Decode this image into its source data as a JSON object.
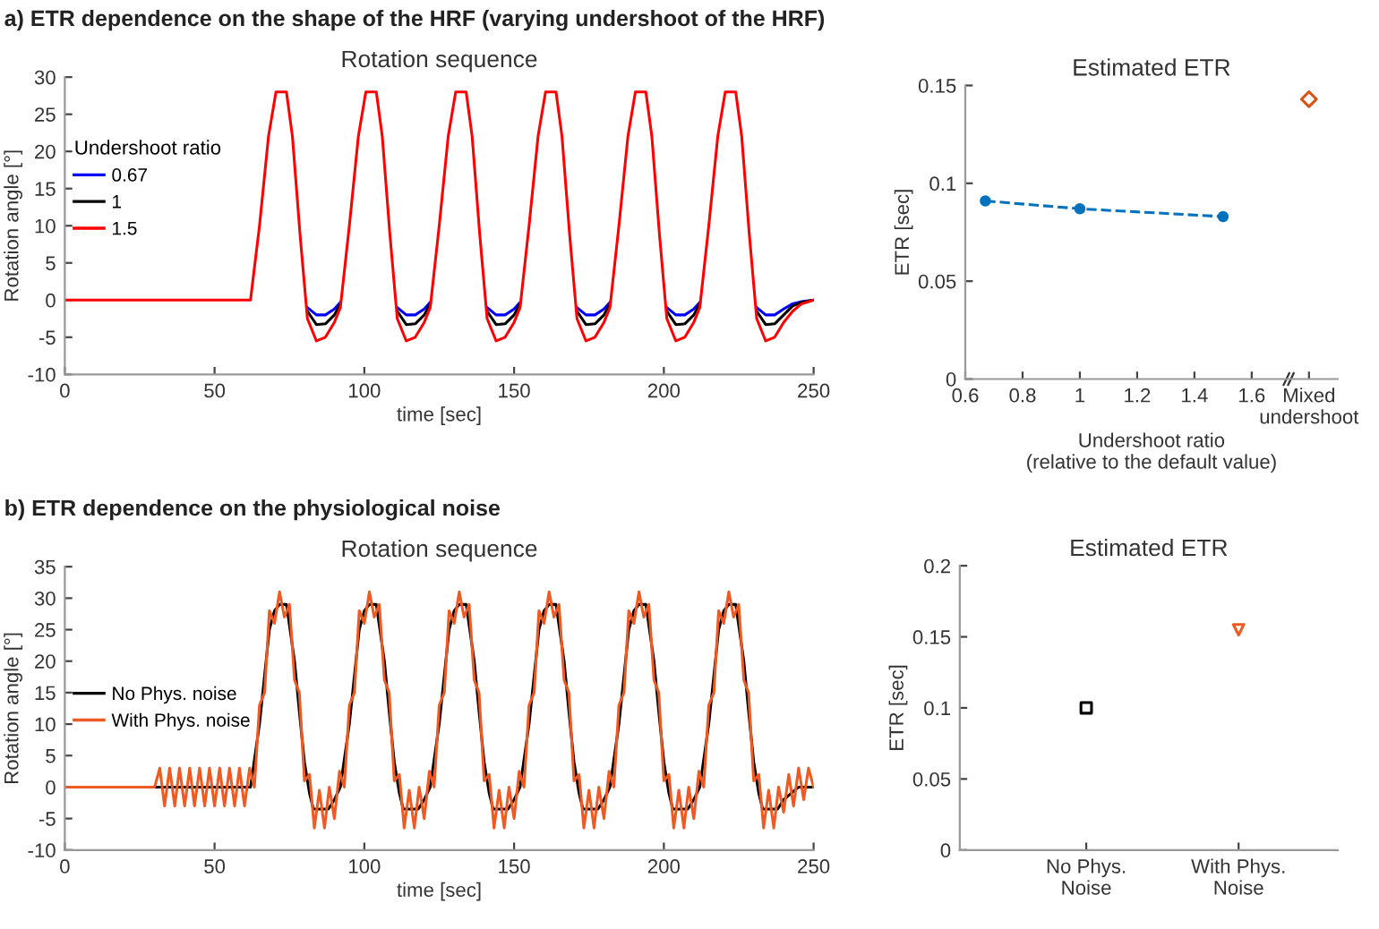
{
  "chart_data": [
    {
      "type": "line",
      "title": "Rotation sequence",
      "xlabel": "time [sec]",
      "ylabel": "Rotation angle [°]",
      "legend_title": "Undershoot ratio",
      "legend": "top left",
      "annotations": [
        "a) ETR dependence on the shape of the HRF (varying undershoot of the HRF)"
      ],
      "xlim": [
        0,
        250
      ],
      "xticks": [
        0,
        50,
        100,
        150,
        200,
        250
      ],
      "ylim": [
        -10,
        30
      ],
      "yticks": [
        -10,
        -5,
        0,
        5,
        10,
        15,
        20,
        25,
        30
      ],
      "x": [
        0,
        62,
        65,
        68,
        70.5,
        74,
        76,
        78.5,
        81,
        84,
        87,
        90,
        92,
        95,
        98,
        100.5,
        104,
        106,
        108.5,
        111,
        114,
        117,
        120,
        122,
        125,
        128,
        130.5,
        134,
        136,
        138.5,
        141,
        144,
        147,
        150,
        152,
        155,
        158,
        160.5,
        164,
        166,
        168.5,
        171,
        174,
        177,
        180,
        182,
        185,
        188,
        190.5,
        194,
        196,
        198.5,
        201,
        204,
        207,
        210,
        212,
        215,
        218,
        220.5,
        224,
        226,
        228.5,
        231,
        234,
        237,
        240,
        243,
        246,
        250
      ],
      "series": [
        {
          "name": "0.67",
          "color": "#0000ff",
          "values": [
            null,
            null,
            null,
            null,
            null,
            null,
            null,
            null,
            -1,
            -2,
            -2,
            -1.2,
            -0.3,
            null,
            null,
            null,
            null,
            null,
            null,
            -1,
            -2,
            -2,
            -1.2,
            -0.3,
            null,
            null,
            null,
            null,
            null,
            null,
            -1,
            -2,
            -2,
            -1.2,
            -0.3,
            null,
            null,
            null,
            null,
            null,
            null,
            -1,
            -2,
            -2,
            -1.2,
            -0.3,
            null,
            null,
            null,
            null,
            null,
            null,
            -1,
            -2,
            -2,
            -1.2,
            -0.3,
            null,
            null,
            null,
            null,
            null,
            null,
            -1,
            -2,
            -2,
            -1.2,
            -0.5,
            -0.2,
            0
          ]
        },
        {
          "name": "1",
          "color": "#000000",
          "values": [
            null,
            null,
            null,
            null,
            null,
            null,
            null,
            null,
            -1.5,
            -3.3,
            -3.2,
            -2,
            -0.5,
            null,
            null,
            null,
            null,
            null,
            null,
            -1.5,
            -3.3,
            -3.2,
            -2,
            -0.5,
            null,
            null,
            null,
            null,
            null,
            null,
            -1.5,
            -3.3,
            -3.2,
            -2,
            -0.5,
            null,
            null,
            null,
            null,
            null,
            null,
            -1.5,
            -3.3,
            -3.2,
            -2,
            -0.5,
            null,
            null,
            null,
            null,
            null,
            null,
            -1.5,
            -3.3,
            -3.2,
            -2,
            -0.5,
            null,
            null,
            null,
            null,
            null,
            null,
            -1.5,
            -3.3,
            -3.2,
            -2,
            -0.8,
            -0.3,
            0
          ]
        },
        {
          "name": "1.5",
          "color": "#ff0000",
          "values": [
            0,
            0,
            10,
            22,
            28,
            28,
            22,
            9,
            -2.5,
            -5.5,
            -5,
            -3,
            -1,
            10,
            22,
            28,
            28,
            22,
            9,
            -2.5,
            -5.5,
            -5,
            -3,
            -1,
            10,
            22,
            28,
            28,
            22,
            9,
            -2.5,
            -5.5,
            -5,
            -3,
            -1,
            10,
            22,
            28,
            28,
            22,
            9,
            -2.5,
            -5.5,
            -5,
            -3,
            -1,
            10,
            22,
            28,
            28,
            22,
            9,
            -2.5,
            -5.5,
            -5,
            -3,
            -1,
            10,
            22,
            28,
            28,
            22,
            9,
            -2.5,
            -5.5,
            -5,
            -3,
            -1.5,
            -0.5,
            0
          ]
        }
      ]
    },
    {
      "type": "line",
      "title": "Estimated ETR",
      "xlabel": "Undershoot ratio\n(relative to the default value)",
      "ylabel": "ETR [sec]",
      "xlim": [
        0.6,
        1.9
      ],
      "xticks": [
        0.6,
        0.8,
        1,
        1.2,
        1.4,
        1.6,
        {
          "value": 1.8,
          "label": "Mixed\nundershoot"
        }
      ],
      "ylim": [
        0,
        0.15
      ],
      "yticks": [
        0,
        0.05,
        0.1,
        0.15
      ],
      "series": [
        {
          "color": "#0072bd",
          "x": [
            0.67,
            1,
            1.5
          ],
          "values": [
            0.091,
            0.087,
            0.083
          ],
          "marker": "circle",
          "line_style": "dashed"
        },
        {
          "type": "scatter",
          "color": "#d95319",
          "x": [
            1.8
          ],
          "values": [
            0.143
          ],
          "marker": "diamond"
        }
      ]
    },
    {
      "type": "line",
      "title": "Rotation sequence",
      "xlabel": "time [sec]",
      "ylabel": "Rotation angle [°]",
      "legend": "left",
      "annotations": [
        "b) ETR dependence on the physiological noise"
      ],
      "xlim": [
        0,
        250
      ],
      "xticks": [
        0,
        50,
        100,
        150,
        200,
        250
      ],
      "ylim": [
        -10,
        35
      ],
      "yticks": [
        -10,
        -5,
        0,
        5,
        10,
        15,
        20,
        25,
        30,
        35
      ],
      "series": [
        {
          "name": "No Phys. noise",
          "color": "#000000",
          "x": [
            0,
            60,
            62,
            65,
            68.3,
            70,
            71.7,
            74,
            76.7,
            78.3,
            80,
            81.7,
            83,
            88,
            90,
            92,
            95,
            98.3,
            100,
            101.7,
            104,
            106.7,
            108.3,
            110,
            111.7,
            113,
            118,
            120,
            122,
            125,
            128.3,
            130,
            131.7,
            134,
            136.7,
            138.3,
            140,
            141.7,
            143,
            148,
            150,
            152,
            155,
            158.3,
            160,
            161.7,
            164,
            166.7,
            168.3,
            170,
            171.7,
            173,
            178,
            180,
            182,
            185,
            188.3,
            190,
            191.7,
            194,
            196.7,
            198.3,
            200,
            201.7,
            203,
            208,
            210,
            212,
            215,
            218.3,
            220,
            221.7,
            224,
            226.7,
            228.3,
            230,
            231.7,
            233,
            238,
            240,
            245,
            250
          ],
          "values": [
            0,
            0,
            0,
            10,
            25,
            28,
            29,
            29,
            20,
            12,
            4,
            -1,
            -3.5,
            -3.5,
            -2,
            0,
            10,
            25,
            28,
            29,
            29,
            20,
            12,
            4,
            -1,
            -3.5,
            -3.5,
            -2,
            0,
            10,
            25,
            28,
            29,
            29,
            20,
            12,
            4,
            -1,
            -3.5,
            -3.5,
            -2,
            0,
            10,
            25,
            28,
            29,
            29,
            20,
            12,
            4,
            -1,
            -3.5,
            -3.5,
            -2,
            0,
            10,
            25,
            28,
            29,
            29,
            20,
            12,
            4,
            -1,
            -3.5,
            -3.5,
            -2,
            0,
            10,
            25,
            28,
            29,
            29,
            20,
            12,
            4,
            -1,
            -3.5,
            -3.5,
            -2,
            0,
            0
          ]
        },
        {
          "name": "With Phys. noise",
          "color": "#ee5a24",
          "x": [
            0,
            30,
            31.7,
            33.3,
            35,
            36.7,
            38.3,
            40,
            41.7,
            43.3,
            45,
            46.7,
            48.3,
            50,
            51.7,
            53.3,
            55,
            56.7,
            58.3,
            60,
            61.7,
            63.3,
            65,
            66.7,
            68.3,
            70,
            71.7,
            73.3,
            75,
            76.7,
            78.3,
            80,
            81.7,
            83.3,
            85,
            86.7,
            88.3,
            90,
            91.7,
            93.3,
            95,
            96.7,
            98.3,
            100,
            101.7,
            103.3,
            105,
            106.7,
            108.3,
            110,
            111.7,
            113.3,
            115,
            116.7,
            118.3,
            120,
            121.7,
            123.3,
            125,
            126.7,
            128.3,
            130,
            131.7,
            133.3,
            135,
            136.7,
            138.3,
            140,
            141.7,
            143.3,
            145,
            146.7,
            148.3,
            150,
            151.7,
            153.3,
            155,
            156.7,
            158.3,
            160,
            161.7,
            163.3,
            165,
            166.7,
            168.3,
            170,
            171.7,
            173.3,
            175,
            176.7,
            178.3,
            180,
            181.7,
            183.3,
            185,
            186.7,
            188.3,
            190,
            191.7,
            193.3,
            195,
            196.7,
            198.3,
            200,
            201.7,
            203.3,
            205,
            206.7,
            208.3,
            210,
            211.7,
            213.3,
            215,
            216.7,
            218.3,
            220,
            221.7,
            223.3,
            225,
            226.7,
            228.3,
            230,
            231.7,
            233.3,
            235,
            236.7,
            238.3,
            240,
            241.7,
            243.3,
            245,
            246.7,
            248.3,
            250
          ],
          "values": [
            0,
            0,
            3,
            -3,
            3,
            -3,
            3,
            -3,
            3,
            -3,
            3,
            -3,
            3,
            -3,
            3,
            -3,
            3,
            -3,
            3,
            -3,
            3,
            0,
            13,
            15,
            28,
            26,
            31,
            27,
            29,
            17,
            15,
            1,
            2,
            -6.5,
            -0.5,
            -6.5,
            0,
            -5,
            2.5,
            0,
            13,
            15,
            28,
            26,
            31,
            27,
            29,
            17,
            15,
            1,
            2,
            -6.5,
            -0.5,
            -6.5,
            0,
            -5,
            2.5,
            0,
            13,
            15,
            28,
            26,
            31,
            27,
            29,
            17,
            15,
            1,
            2,
            -6.5,
            -0.5,
            -6.5,
            0,
            -5,
            2.5,
            0,
            13,
            15,
            28,
            26,
            31,
            27,
            29,
            17,
            15,
            1,
            2,
            -6.5,
            -0.5,
            -6.5,
            0,
            -5,
            2.5,
            0,
            13,
            15,
            28,
            26,
            31,
            27,
            29,
            17,
            15,
            1,
            2,
            -6.5,
            -0.5,
            -6.5,
            0,
            -5,
            2.5,
            0,
            13,
            15,
            28,
            26,
            31,
            27,
            29,
            17,
            15,
            1,
            2,
            -6.5,
            -0.5,
            -6.5,
            0,
            -4,
            2,
            -3,
            3,
            -2,
            3,
            0
          ]
        }
      ]
    },
    {
      "type": "scatter",
      "title": "Estimated ETR",
      "ylabel": "ETR [sec]",
      "categories": [
        "No Phys.\nNoise",
        "With Phys.\nNoise"
      ],
      "ylim": [
        0,
        0.2
      ],
      "yticks": [
        0,
        0.05,
        0.1,
        0.15,
        0.2
      ],
      "series": [
        {
          "color": "#000000",
          "values": [
            0.1,
            null
          ],
          "marker": "square"
        },
        {
          "color": "#ee5a24",
          "values": [
            null,
            0.155
          ],
          "marker": "triangle"
        }
      ]
    }
  ]
}
